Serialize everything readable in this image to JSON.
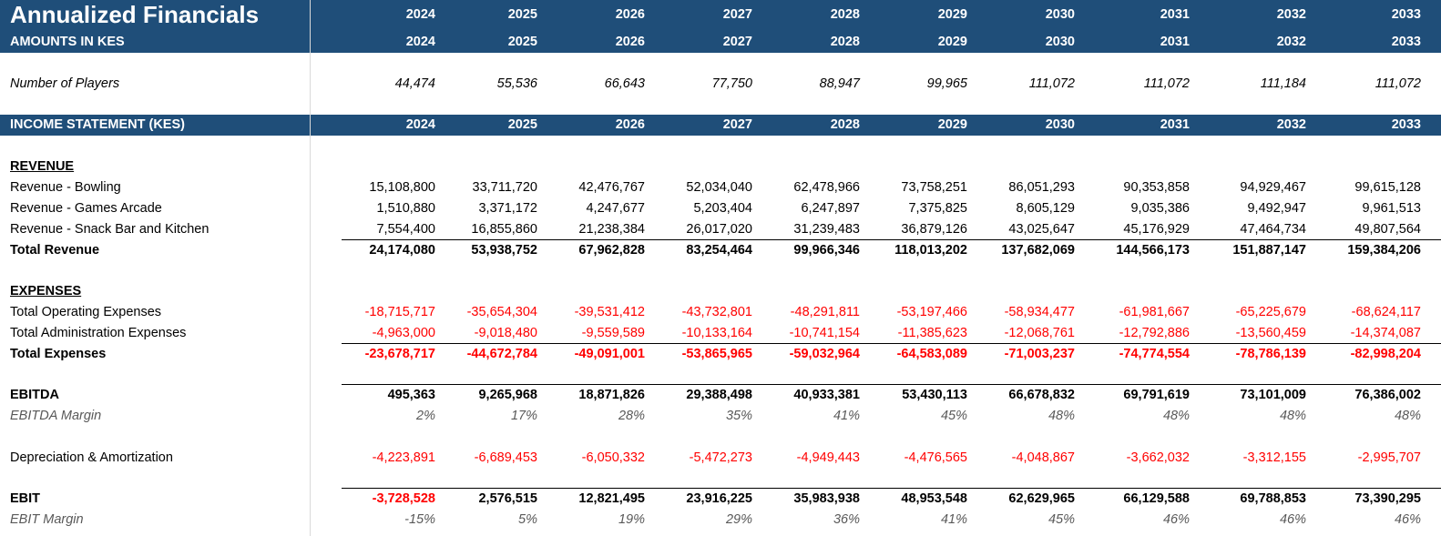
{
  "title": "Annualized Financials",
  "amounts_label": "AMOUNTS IN KES",
  "years": [
    "2024",
    "2025",
    "2026",
    "2027",
    "2028",
    "2029",
    "2030",
    "2031",
    "2032",
    "2033"
  ],
  "players": {
    "label": "Number of Players",
    "values": [
      "44,474",
      "55,536",
      "66,643",
      "77,750",
      "88,947",
      "99,965",
      "111,072",
      "111,072",
      "111,184",
      "111,072"
    ]
  },
  "income_statement_label": "INCOME STATEMENT (KES)",
  "revenue": {
    "header": "REVENUE",
    "rows": [
      {
        "label": "Revenue - Bowling",
        "values": [
          "15,108,800",
          "33,711,720",
          "42,476,767",
          "52,034,040",
          "62,478,966",
          "73,758,251",
          "86,051,293",
          "90,353,858",
          "94,929,467",
          "99,615,128"
        ]
      },
      {
        "label": "Revenue - Games Arcade",
        "values": [
          "1,510,880",
          "3,371,172",
          "4,247,677",
          "5,203,404",
          "6,247,897",
          "7,375,825",
          "8,605,129",
          "9,035,386",
          "9,492,947",
          "9,961,513"
        ]
      },
      {
        "label": "Revenue - Snack Bar and Kitchen",
        "values": [
          "7,554,400",
          "16,855,860",
          "21,238,384",
          "26,017,020",
          "31,239,483",
          "36,879,126",
          "43,025,647",
          "45,176,929",
          "47,464,734",
          "49,807,564"
        ]
      }
    ],
    "total": {
      "label": "Total Revenue",
      "values": [
        "24,174,080",
        "53,938,752",
        "67,962,828",
        "83,254,464",
        "99,966,346",
        "118,013,202",
        "137,682,069",
        "144,566,173",
        "151,887,147",
        "159,384,206"
      ]
    }
  },
  "expenses": {
    "header": "EXPENSES",
    "rows": [
      {
        "label": "Total Operating Expenses",
        "values": [
          "-18,715,717",
          "-35,654,304",
          "-39,531,412",
          "-43,732,801",
          "-48,291,811",
          "-53,197,466",
          "-58,934,477",
          "-61,981,667",
          "-65,225,679",
          "-68,624,117"
        ]
      },
      {
        "label": "Total Administration Expenses",
        "values": [
          "-4,963,000",
          "-9,018,480",
          "-9,559,589",
          "-10,133,164",
          "-10,741,154",
          "-11,385,623",
          "-12,068,761",
          "-12,792,886",
          "-13,560,459",
          "-14,374,087"
        ]
      }
    ],
    "total": {
      "label": "Total Expenses",
      "values": [
        "-23,678,717",
        "-44,672,784",
        "-49,091,001",
        "-53,865,965",
        "-59,032,964",
        "-64,583,089",
        "-71,003,237",
        "-74,774,554",
        "-78,786,139",
        "-82,998,204"
      ]
    }
  },
  "ebitda": {
    "label": "EBITDA",
    "values": [
      "495,363",
      "9,265,968",
      "18,871,826",
      "29,388,498",
      "40,933,381",
      "53,430,113",
      "66,678,832",
      "69,791,619",
      "73,101,009",
      "76,386,002"
    ]
  },
  "ebitda_margin": {
    "label": "EBITDA Margin",
    "values": [
      "2%",
      "17%",
      "28%",
      "35%",
      "41%",
      "45%",
      "48%",
      "48%",
      "48%",
      "48%"
    ]
  },
  "da": {
    "label": "Depreciation & Amortization",
    "values": [
      "-4,223,891",
      "-6,689,453",
      "-6,050,332",
      "-5,472,273",
      "-4,949,443",
      "-4,476,565",
      "-4,048,867",
      "-3,662,032",
      "-3,312,155",
      "-2,995,707"
    ]
  },
  "ebit": {
    "label": "EBIT",
    "values": [
      "-3,728,528",
      "2,576,515",
      "12,821,495",
      "23,916,225",
      "35,983,938",
      "48,953,548",
      "62,629,965",
      "66,129,588",
      "69,788,853",
      "73,390,295"
    ]
  },
  "ebit_margin": {
    "label": "EBIT Margin",
    "values": [
      "-15%",
      "5%",
      "19%",
      "29%",
      "36%",
      "41%",
      "45%",
      "46%",
      "46%",
      "46%"
    ]
  },
  "colors": {
    "band": "#1f4e79",
    "negative": "#ff0000"
  }
}
